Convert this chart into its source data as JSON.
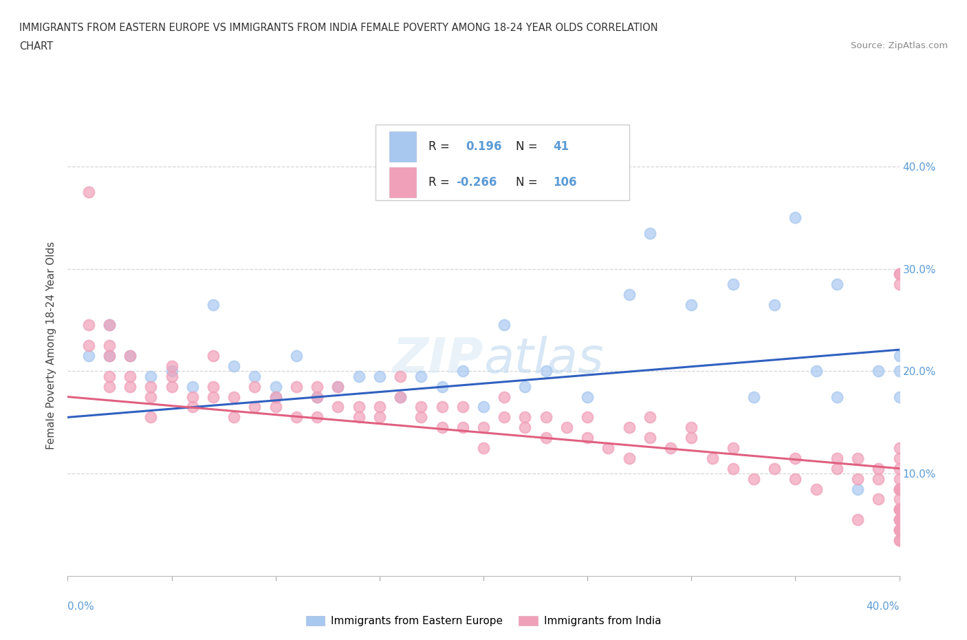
{
  "title_line1": "IMMIGRANTS FROM EASTERN EUROPE VS IMMIGRANTS FROM INDIA FEMALE POVERTY AMONG 18-24 YEAR OLDS CORRELATION",
  "title_line2": "CHART",
  "source_text": "Source: ZipAtlas.com",
  "ylabel": "Female Poverty Among 18-24 Year Olds",
  "xlim": [
    0.0,
    0.4
  ],
  "ylim": [
    0.0,
    0.45
  ],
  "yticks": [
    0.1,
    0.2,
    0.3,
    0.4
  ],
  "ytick_labels": [
    "10.0%",
    "20.0%",
    "30.0%",
    "40.0%"
  ],
  "legend_label1": "Immigrants from Eastern Europe",
  "legend_label2": "Immigrants from India",
  "r1": 0.196,
  "n1": 41,
  "r2": -0.266,
  "n2": 106,
  "color_blue": "#A8C8F0",
  "color_pink": "#F0A0B8",
  "color_blue_line": "#3060C0",
  "color_pink_line": "#E06080",
  "color_axis": "#5B9BD5",
  "blue_intercept": 0.155,
  "blue_slope": 0.165,
  "pink_intercept": 0.175,
  "pink_slope": -0.175,
  "blue_x": [
    0.01,
    0.02,
    0.02,
    0.03,
    0.04,
    0.05,
    0.06,
    0.07,
    0.08,
    0.09,
    0.1,
    0.1,
    0.11,
    0.12,
    0.13,
    0.14,
    0.15,
    0.16,
    0.17,
    0.18,
    0.19,
    0.2,
    0.21,
    0.22,
    0.23,
    0.25,
    0.27,
    0.28,
    0.3,
    0.32,
    0.33,
    0.34,
    0.35,
    0.36,
    0.37,
    0.37,
    0.38,
    0.39,
    0.4,
    0.4,
    0.4
  ],
  "blue_y": [
    0.215,
    0.245,
    0.215,
    0.215,
    0.195,
    0.2,
    0.185,
    0.265,
    0.205,
    0.195,
    0.185,
    0.175,
    0.215,
    0.175,
    0.185,
    0.195,
    0.195,
    0.175,
    0.195,
    0.185,
    0.2,
    0.165,
    0.245,
    0.185,
    0.2,
    0.175,
    0.275,
    0.335,
    0.265,
    0.285,
    0.175,
    0.265,
    0.35,
    0.2,
    0.285,
    0.175,
    0.085,
    0.2,
    0.2,
    0.175,
    0.215
  ],
  "pink_x": [
    0.01,
    0.01,
    0.01,
    0.02,
    0.02,
    0.02,
    0.02,
    0.02,
    0.03,
    0.03,
    0.03,
    0.04,
    0.04,
    0.04,
    0.05,
    0.05,
    0.05,
    0.06,
    0.06,
    0.07,
    0.07,
    0.07,
    0.08,
    0.08,
    0.09,
    0.09,
    0.1,
    0.1,
    0.11,
    0.11,
    0.12,
    0.12,
    0.12,
    0.13,
    0.13,
    0.14,
    0.14,
    0.15,
    0.15,
    0.16,
    0.16,
    0.17,
    0.17,
    0.18,
    0.18,
    0.19,
    0.19,
    0.2,
    0.2,
    0.21,
    0.21,
    0.22,
    0.22,
    0.23,
    0.23,
    0.24,
    0.25,
    0.25,
    0.26,
    0.27,
    0.27,
    0.28,
    0.28,
    0.29,
    0.3,
    0.3,
    0.31,
    0.32,
    0.32,
    0.33,
    0.34,
    0.35,
    0.35,
    0.36,
    0.37,
    0.37,
    0.38,
    0.38,
    0.38,
    0.39,
    0.39,
    0.39,
    0.4,
    0.4,
    0.4,
    0.4,
    0.4,
    0.4,
    0.4,
    0.4,
    0.4,
    0.4,
    0.4,
    0.4,
    0.4,
    0.4,
    0.4,
    0.4,
    0.4,
    0.4,
    0.4,
    0.4,
    0.4,
    0.4,
    0.4,
    0.4
  ],
  "pink_y": [
    0.245,
    0.225,
    0.375,
    0.215,
    0.185,
    0.245,
    0.225,
    0.195,
    0.215,
    0.185,
    0.195,
    0.175,
    0.185,
    0.155,
    0.185,
    0.195,
    0.205,
    0.175,
    0.165,
    0.185,
    0.215,
    0.175,
    0.155,
    0.175,
    0.165,
    0.185,
    0.165,
    0.175,
    0.155,
    0.185,
    0.175,
    0.155,
    0.185,
    0.165,
    0.185,
    0.155,
    0.165,
    0.155,
    0.165,
    0.175,
    0.195,
    0.155,
    0.165,
    0.145,
    0.165,
    0.145,
    0.165,
    0.145,
    0.125,
    0.155,
    0.175,
    0.145,
    0.155,
    0.135,
    0.155,
    0.145,
    0.135,
    0.155,
    0.125,
    0.115,
    0.145,
    0.135,
    0.155,
    0.125,
    0.145,
    0.135,
    0.115,
    0.125,
    0.105,
    0.095,
    0.105,
    0.115,
    0.095,
    0.085,
    0.115,
    0.105,
    0.095,
    0.115,
    0.055,
    0.095,
    0.105,
    0.075,
    0.285,
    0.295,
    0.095,
    0.085,
    0.105,
    0.085,
    0.295,
    0.055,
    0.035,
    0.115,
    0.065,
    0.065,
    0.085,
    0.125,
    0.085,
    0.045,
    0.065,
    0.055,
    0.075,
    0.045,
    0.035,
    0.055,
    0.065,
    0.045
  ]
}
